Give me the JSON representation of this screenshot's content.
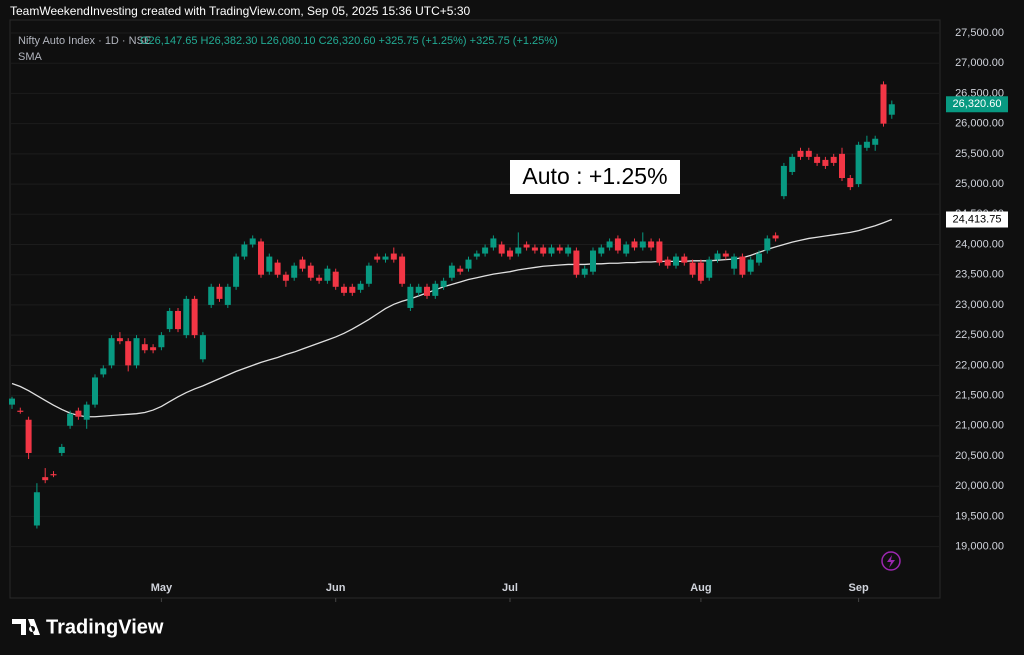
{
  "header": {
    "caption": "TeamWeekendInvesting created with TradingView.com, Sep 05, 2025 15:36 UTC+5:30",
    "brand": "TradingView"
  },
  "chart_data": {
    "type": "candlestick",
    "symbol": "Nifty Auto Index · 1D · NSE",
    "ohlc_legend": "O26,147.65 H26,382.30 L26,080.10 C26,320.60 +325.75 (+1.25%) +325.75 (+1.25%)",
    "indicator": "SMA",
    "annotation": "Auto : +1.25%",
    "up_color": "#089981",
    "down_color": "#f23645",
    "sma_color": "#e0e0e0",
    "grid": true,
    "categories": [
      null,
      null,
      null,
      null,
      null,
      null,
      null,
      null,
      null,
      null,
      null,
      null,
      null,
      null,
      null,
      null,
      null,
      null,
      "May",
      null,
      null,
      null,
      null,
      null,
      null,
      null,
      null,
      null,
      null,
      null,
      null,
      null,
      null,
      null,
      null,
      null,
      null,
      null,
      null,
      "Jun",
      null,
      null,
      null,
      null,
      null,
      null,
      null,
      null,
      null,
      null,
      null,
      null,
      null,
      null,
      null,
      null,
      null,
      null,
      null,
      null,
      "Jul",
      null,
      null,
      null,
      null,
      null,
      null,
      null,
      null,
      null,
      null,
      null,
      null,
      null,
      null,
      null,
      null,
      null,
      null,
      null,
      null,
      null,
      null,
      "Aug",
      null,
      null,
      null,
      null,
      null,
      null,
      null,
      null,
      null,
      null,
      null,
      null,
      null,
      null,
      null,
      null,
      null,
      null,
      "Sep",
      null,
      null,
      null,
      null
    ],
    "open": [
      21350,
      21250,
      21100,
      19350,
      20150,
      20200,
      20550,
      21000,
      21250,
      21100,
      21350,
      21850,
      22000,
      22450,
      22400,
      22000,
      22350,
      22300,
      22300,
      22600,
      22900,
      22500,
      23100,
      22100,
      23000,
      23300,
      23000,
      23300,
      23800,
      24000,
      24050,
      23550,
      23700,
      23500,
      23450,
      23750,
      23650,
      23450,
      23400,
      23550,
      23300,
      23300,
      23250,
      23350,
      23800,
      23750,
      23850,
      23800,
      22950,
      23200,
      23300,
      23150,
      23300,
      23450,
      23600,
      23600,
      23800,
      23850,
      23950,
      24000,
      23900,
      23850,
      24000,
      23950,
      23950,
      23850,
      23950,
      23850,
      23900,
      23500,
      23550,
      23850,
      23950,
      24100,
      23850,
      24050,
      23950,
      24050,
      24050,
      23750,
      23650,
      23800,
      23700,
      23700,
      23450,
      23750,
      23850,
      23600,
      23800,
      23550,
      23700,
      23900,
      24150,
      24800,
      25200,
      25550,
      25550,
      25450,
      25400,
      25450,
      25500,
      25100,
      25000,
      25600,
      25650,
      26650,
      26147.65
    ],
    "high": [
      21480,
      21300,
      21150,
      20050,
      20300,
      20250,
      20700,
      21250,
      21300,
      21400,
      21850,
      22000,
      22500,
      22550,
      22450,
      22500,
      22450,
      22350,
      22550,
      22950,
      22950,
      23150,
      23150,
      22550,
      23350,
      23350,
      23350,
      23850,
      24050,
      24150,
      24100,
      23850,
      23750,
      23550,
      23700,
      23800,
      23700,
      23500,
      23650,
      23600,
      23350,
      23350,
      23400,
      23700,
      23850,
      23850,
      23950,
      23850,
      23350,
      23350,
      23350,
      23400,
      23450,
      23700,
      23650,
      23800,
      23900,
      24000,
      24150,
      24050,
      23950,
      24200,
      24050,
      24000,
      24000,
      24000,
      24000,
      24000,
      23950,
      23650,
      23950,
      24000,
      24100,
      24150,
      24050,
      24100,
      24200,
      24100,
      24100,
      23800,
      23850,
      23850,
      23750,
      23750,
      23800,
      23900,
      23900,
      23850,
      23850,
      23800,
      23900,
      24150,
      24200,
      25350,
      25500,
      25600,
      25600,
      25500,
      25450,
      25500,
      25600,
      25150,
      25700,
      25800,
      25800,
      26700,
      26382.3
    ],
    "low": [
      21280,
      21200,
      20450,
      19300,
      20050,
      20150,
      20500,
      20950,
      21100,
      20950,
      21300,
      21800,
      21950,
      22350,
      21900,
      21950,
      22200,
      22200,
      22250,
      22550,
      22550,
      22450,
      22450,
      22050,
      22950,
      23050,
      22950,
      23250,
      23750,
      23950,
      23450,
      23500,
      23450,
      23300,
      23400,
      23550,
      23400,
      23350,
      23350,
      23250,
      23150,
      23150,
      23200,
      23300,
      23700,
      23700,
      23700,
      23300,
      22900,
      23150,
      23100,
      23100,
      23250,
      23400,
      23500,
      23550,
      23750,
      23800,
      23900,
      23800,
      23750,
      23800,
      23900,
      23850,
      23800,
      23800,
      23850,
      23800,
      23450,
      23450,
      23500,
      23800,
      23900,
      23850,
      23800,
      23900,
      23900,
      23900,
      23650,
      23600,
      23600,
      23650,
      23450,
      23350,
      23400,
      23700,
      23750,
      23500,
      23450,
      23500,
      23650,
      23850,
      24050,
      24750,
      25150,
      25400,
      25400,
      25300,
      25250,
      25300,
      25050,
      24900,
      24950,
      25550,
      25550,
      25950,
      26080.1
    ],
    "close": [
      21450,
      21230,
      20550,
      19900,
      20100,
      20180,
      20650,
      21200,
      21150,
      21350,
      21800,
      21950,
      22450,
      22400,
      22000,
      22450,
      22250,
      22250,
      22500,
      22900,
      22600,
      23100,
      22500,
      22500,
      23300,
      23100,
      23300,
      23800,
      24000,
      24100,
      23500,
      23800,
      23500,
      23400,
      23650,
      23600,
      23450,
      23400,
      23600,
      23300,
      23200,
      23200,
      23350,
      23650,
      23750,
      23800,
      23750,
      23350,
      23300,
      23300,
      23150,
      23350,
      23400,
      23650,
      23550,
      23750,
      23850,
      23950,
      24100,
      23850,
      23800,
      23950,
      23950,
      23900,
      23850,
      23950,
      23900,
      23950,
      23500,
      23600,
      23900,
      23950,
      24050,
      23900,
      24000,
      23950,
      24050,
      23950,
      23700,
      23650,
      23800,
      23700,
      23500,
      23400,
      23750,
      23850,
      23800,
      23800,
      23500,
      23750,
      23850,
      24100,
      24100,
      25300,
      25450,
      25450,
      25450,
      25350,
      25300,
      25350,
      25100,
      24950,
      25650,
      25700,
      25750,
      26000,
      26320.6
    ],
    "sma": [
      21700,
      21650,
      21580,
      21500,
      21420,
      21340,
      21270,
      21210,
      21170,
      21150,
      21150,
      21160,
      21170,
      21180,
      21190,
      21200,
      21220,
      21260,
      21320,
      21400,
      21480,
      21550,
      21610,
      21660,
      21720,
      21780,
      21840,
      21900,
      21950,
      22000,
      22050,
      22090,
      22130,
      22180,
      22220,
      22270,
      22320,
      22370,
      22420,
      22470,
      22530,
      22600,
      22680,
      22760,
      22850,
      22940,
      23010,
      23060,
      23100,
      23150,
      23200,
      23250,
      23300,
      23340,
      23380,
      23420,
      23450,
      23480,
      23510,
      23530,
      23550,
      23580,
      23600,
      23620,
      23640,
      23650,
      23660,
      23670,
      23670,
      23670,
      23680,
      23680,
      23690,
      23690,
      23700,
      23700,
      23710,
      23710,
      23720,
      23720,
      23720,
      23720,
      23730,
      23730,
      23730,
      23740,
      23750,
      23760,
      23780,
      23820,
      23870,
      23920,
      23960,
      24000,
      24040,
      24070,
      24100,
      24120,
      24140,
      24160,
      24180,
      24200,
      24230,
      24270,
      24310,
      24360,
      24413.75
    ],
    "last_price": {
      "value": 26320.6,
      "label": "26,320.60"
    },
    "sma_last": {
      "value": 24413.75,
      "label": "24,413.75"
    },
    "ylim": [
      18150,
      27715
    ],
    "yticks": [
      {
        "value": 19000,
        "label": "19,000.00"
      },
      {
        "value": 19500,
        "label": "19,500.00"
      },
      {
        "value": 20000,
        "label": "20,000.00"
      },
      {
        "value": 20500,
        "label": "20,500.00"
      },
      {
        "value": 21000,
        "label": "21,000.00"
      },
      {
        "value": 21500,
        "label": "21,500.00"
      },
      {
        "value": 22000,
        "label": "22,000.00"
      },
      {
        "value": 22500,
        "label": "22,500.00"
      },
      {
        "value": 23000,
        "label": "23,000.00"
      },
      {
        "value": 23500,
        "label": "23,500.00"
      },
      {
        "value": 24000,
        "label": "24,000.00"
      },
      {
        "value": 24500,
        "label": "24,500.00"
      },
      {
        "value": 25000,
        "label": "25,000.00"
      },
      {
        "value": 25500,
        "label": "25,500.00"
      },
      {
        "value": 26000,
        "label": "26,000.00"
      },
      {
        "value": 26500,
        "label": "26,500.00"
      },
      {
        "value": 27000,
        "label": "27,000.00"
      },
      {
        "value": 27500,
        "label": "27,500.00"
      }
    ]
  }
}
